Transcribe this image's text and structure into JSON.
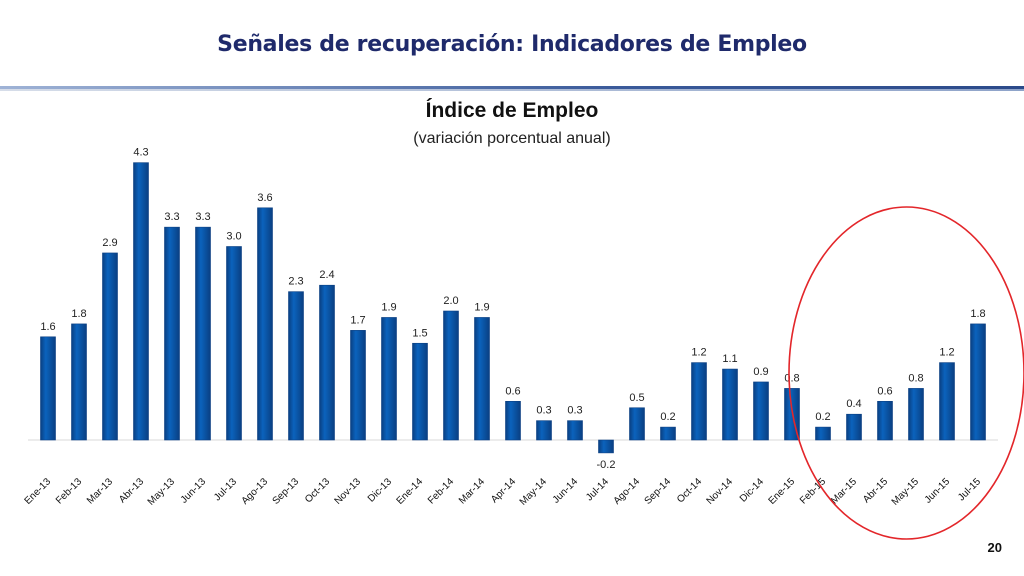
{
  "slide": {
    "title": "Señales de recuperación: Indicadores de Empleo",
    "page_number": "20"
  },
  "colors": {
    "bar": "#0b63bd",
    "bar_edge": "#0a3f82",
    "highlight_ellipse": "#e3262a",
    "title": "#1f2a6b"
  },
  "chart_data": {
    "type": "bar",
    "title": "Índice de Empleo",
    "subtitle": "(variación porcentual anual)",
    "xlabel": "",
    "ylabel": "",
    "grid": false,
    "categories": [
      "Ene-13",
      "Feb-13",
      "Mar-13",
      "Abr-13",
      "May-13",
      "Jun-13",
      "Jul-13",
      "Ago-13",
      "Sep-13",
      "Oct-13",
      "Nov-13",
      "Dic-13",
      "Ene-14",
      "Feb-14",
      "Mar-14",
      "Apr-14",
      "May-14",
      "Jun-14",
      "Jul-14",
      "Ago-14",
      "Sep-14",
      "Oct-14",
      "Nov-14",
      "Dic-14",
      "Ene-15",
      "Feb-15",
      "Mar-15",
      "Abr-15",
      "May-15",
      "Jun-15",
      "Jul-15"
    ],
    "values": [
      1.6,
      1.8,
      2.9,
      4.3,
      3.3,
      3.3,
      3.0,
      3.6,
      2.3,
      2.4,
      1.7,
      1.9,
      1.5,
      2.0,
      1.9,
      0.6,
      0.3,
      0.3,
      -0.2,
      0.5,
      0.2,
      1.2,
      1.1,
      0.9,
      0.8,
      0.2,
      0.4,
      0.6,
      0.8,
      1.2,
      1.8
    ],
    "value_labels": [
      "1.6",
      "1.8",
      "2.9",
      "4.3",
      "3.3",
      "3.3",
      "3.0",
      "3.6",
      "2.3",
      "2.4",
      "1.7",
      "1.9",
      "1.5",
      "2.0",
      "1.9",
      "0.6",
      "0.3",
      "0.3",
      "-0.2",
      "0.5",
      "0.2",
      "1.2",
      "1.1",
      "0.9",
      "0.8",
      "0.2",
      "0.4",
      "0.6",
      "0.8",
      "1.2",
      "1.8"
    ],
    "highlight": {
      "from": "Feb-15",
      "to": "Jul-15",
      "shape": "ellipse"
    }
  }
}
